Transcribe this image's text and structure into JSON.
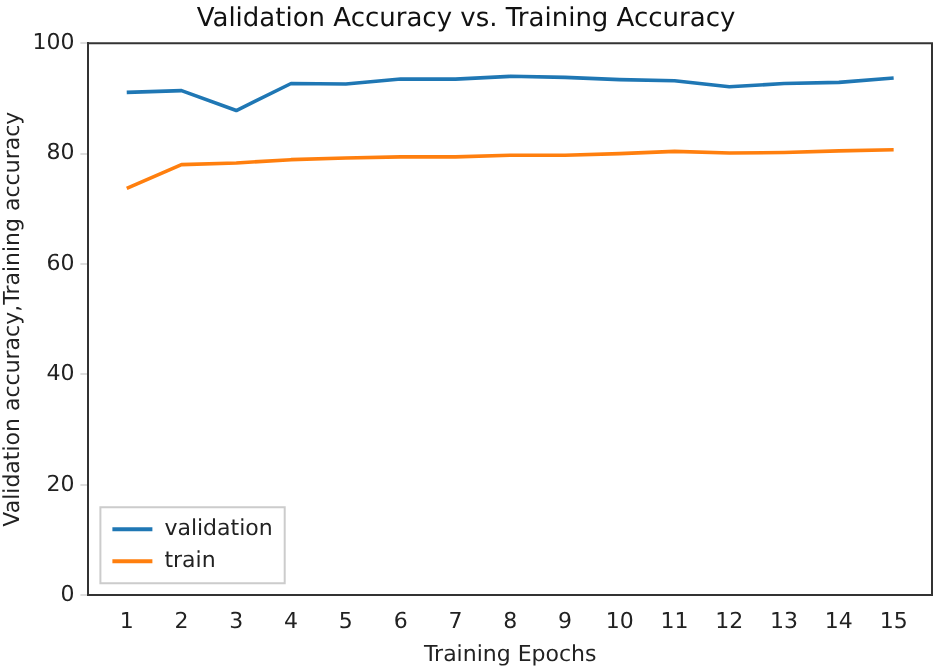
{
  "chart_data": {
    "type": "line",
    "title": "Validation Accuracy vs. Training Accuracy",
    "xlabel": "Training Epochs",
    "ylabel": "Validation accuracy,Training accuracy",
    "x": [
      1,
      2,
      3,
      4,
      5,
      6,
      7,
      8,
      9,
      10,
      11,
      12,
      13,
      14,
      15
    ],
    "series": [
      {
        "name": "validation",
        "color": "#1f77b4",
        "values": [
          91.1,
          91.4,
          87.8,
          92.7,
          92.6,
          93.5,
          93.5,
          94.0,
          93.8,
          93.4,
          93.2,
          92.1,
          92.7,
          92.9,
          93.7
        ]
      },
      {
        "name": "train",
        "color": "#ff7f0e",
        "values": [
          73.7,
          78.0,
          78.3,
          78.9,
          79.2,
          79.4,
          79.4,
          79.7,
          79.7,
          80.0,
          80.4,
          80.1,
          80.2,
          80.5,
          80.7
        ]
      }
    ],
    "xlim": [
      0.3,
      15.7
    ],
    "xticks": [
      1,
      2,
      3,
      4,
      5,
      6,
      7,
      8,
      9,
      10,
      11,
      12,
      13,
      14,
      15
    ],
    "ylim": [
      0,
      100
    ],
    "yticks": [
      0,
      20,
      40,
      60,
      80,
      100
    ],
    "grid": false,
    "legend": "bottom left",
    "marker": "none",
    "line_style": "solid"
  }
}
